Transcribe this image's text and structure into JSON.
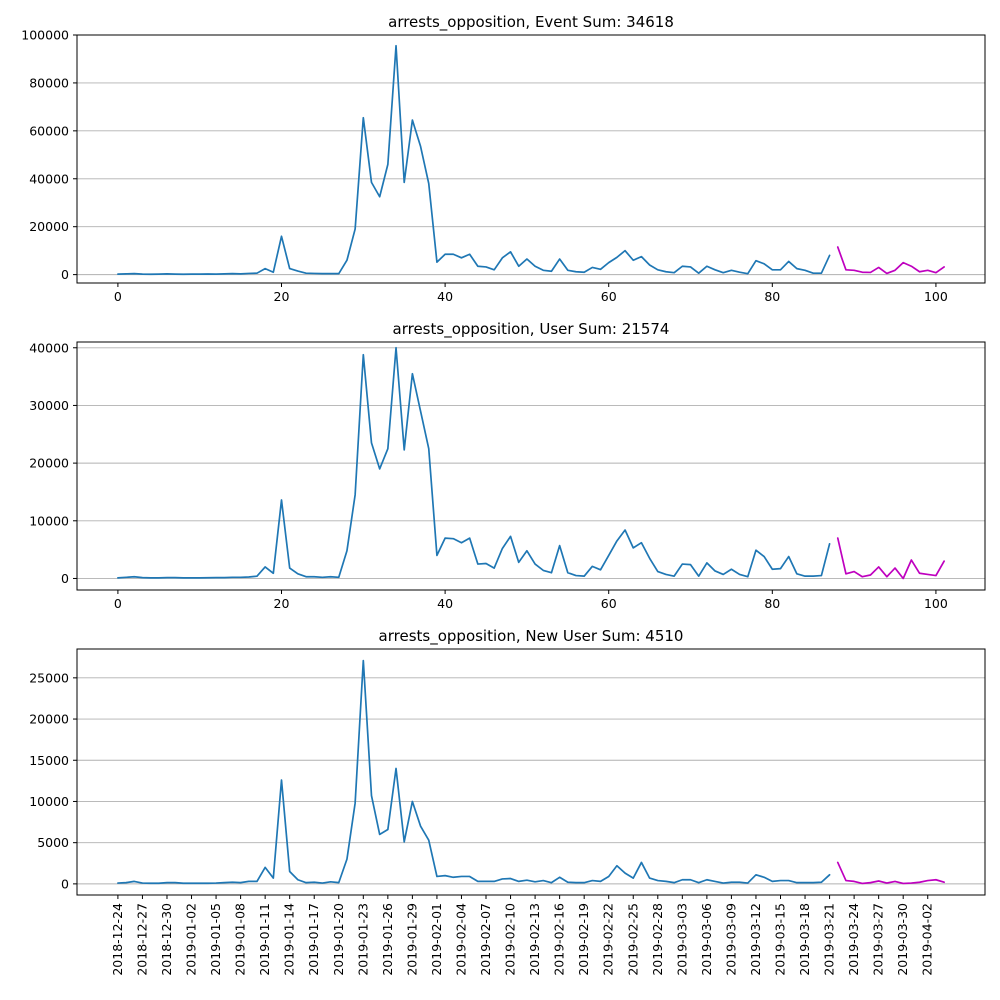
{
  "chart_data": [
    {
      "type": "line",
      "title": "arrests_opposition, Event Sum: 34618",
      "xlabel": "",
      "ylabel": "",
      "xlim": [
        -5,
        106
      ],
      "ylim": [
        -3500,
        100000
      ],
      "yticks": [
        0,
        20000,
        40000,
        60000,
        80000,
        100000
      ],
      "xticks": [
        0,
        20,
        40,
        60,
        80,
        100
      ],
      "grid": "horizontal",
      "series": [
        {
          "color": "#1f77b4",
          "x_start": 0,
          "values": [
            200,
            300,
            400,
            200,
            150,
            200,
            300,
            200,
            150,
            200,
            200,
            250,
            200,
            300,
            400,
            300,
            500,
            600,
            2500,
            1000,
            16000,
            2500,
            1500,
            600,
            500,
            400,
            400,
            400,
            6000,
            19000,
            65500,
            38500,
            32500,
            46000,
            95500,
            38500,
            64500,
            53500,
            38000,
            5200,
            8500,
            8500,
            7000,
            8500,
            3500,
            3200,
            2000,
            7000,
            9500,
            3500,
            6500,
            3500,
            1800,
            1400,
            6500,
            1800,
            1200,
            1000,
            3000,
            2200,
            5000,
            7200,
            10000,
            6000,
            7500,
            4000,
            2000,
            1200,
            800,
            3500,
            3200,
            600,
            3500,
            2000,
            800,
            1800,
            1000,
            400,
            5800,
            4500,
            2000,
            2000,
            5500,
            2500,
            1800,
            600,
            600,
            8000
          ]
        },
        {
          "color": "#bf00bf",
          "x_start": 88,
          "values": [
            11500,
            2000,
            1800,
            1000,
            900,
            3000,
            500,
            1800,
            5000,
            3500,
            1200,
            1800,
            800,
            3200
          ]
        }
      ]
    },
    {
      "type": "line",
      "title": "arrests_opposition, User Sum: 21574",
      "xlabel": "",
      "ylabel": "",
      "xlim": [
        -5,
        106
      ],
      "ylim": [
        -2000,
        41000
      ],
      "yticks": [
        0,
        10000,
        20000,
        30000,
        40000
      ],
      "xticks": [
        0,
        20,
        40,
        60,
        80,
        100
      ],
      "grid": "horizontal",
      "series": [
        {
          "color": "#1f77b4",
          "x_start": 0,
          "values": [
            100,
            200,
            300,
            150,
            100,
            100,
            150,
            150,
            100,
            100,
            100,
            120,
            150,
            150,
            200,
            200,
            250,
            400,
            2000,
            900,
            13600,
            1800,
            800,
            300,
            300,
            200,
            300,
            200,
            4800,
            14500,
            38800,
            23500,
            19000,
            22500,
            40000,
            22300,
            35500,
            29000,
            22500,
            4000,
            7000,
            6900,
            6200,
            7000,
            2500,
            2600,
            1800,
            5200,
            7300,
            2800,
            4800,
            2500,
            1400,
            1000,
            5700,
            1000,
            500,
            400,
            2100,
            1500,
            4000,
            6500,
            8400,
            5300,
            6200,
            3500,
            1200,
            700,
            400,
            2500,
            2400,
            400,
            2700,
            1300,
            700,
            1600,
            700,
            300,
            4900,
            3800,
            1600,
            1700,
            3800,
            800,
            400,
            400,
            500,
            6000
          ]
        },
        {
          "color": "#bf00bf",
          "x_start": 88,
          "values": [
            7000,
            800,
            1200,
            300,
            600,
            2000,
            300,
            1800,
            0,
            3200,
            900,
            700,
            500,
            3000
          ]
        }
      ]
    },
    {
      "type": "line",
      "title": "arrests_opposition, New User Sum: 4510",
      "xlabel": "",
      "ylabel": "",
      "xlim": [
        -5,
        106
      ],
      "ylim": [
        -1350,
        28500
      ],
      "yticks": [
        0,
        5000,
        10000,
        15000,
        20000,
        25000
      ],
      "xtick_step": 3,
      "grid": "horizontal",
      "x_dates": [
        "2018-12-24",
        "2018-12-27",
        "2018-12-30",
        "2019-01-02",
        "2019-01-05",
        "2019-01-08",
        "2019-01-11",
        "2019-01-14",
        "2019-01-17",
        "2019-01-20",
        "2019-01-23",
        "2019-01-26",
        "2019-01-29",
        "2019-02-01",
        "2019-02-04",
        "2019-02-07",
        "2019-02-10",
        "2019-02-13",
        "2019-02-16",
        "2019-02-19",
        "2019-02-22",
        "2019-02-25",
        "2019-02-28",
        "2019-03-03",
        "2019-03-06",
        "2019-03-09",
        "2019-03-12",
        "2019-03-15",
        "2019-03-18",
        "2019-03-21",
        "2019-03-24",
        "2019-03-27",
        "2019-03-30",
        "2019-04-02"
      ],
      "series": [
        {
          "color": "#1f77b4",
          "x_start": 0,
          "values": [
            100,
            150,
            300,
            100,
            80,
            80,
            150,
            150,
            80,
            80,
            80,
            80,
            100,
            150,
            200,
            150,
            300,
            300,
            2000,
            700,
            12600,
            1500,
            500,
            150,
            200,
            100,
            250,
            150,
            3000,
            9800,
            27100,
            10700,
            6000,
            6600,
            14000,
            5100,
            10000,
            7000,
            5300,
            900,
            1000,
            800,
            900,
            900,
            300,
            300,
            300,
            600,
            650,
            300,
            450,
            250,
            400,
            150,
            800,
            200,
            150,
            150,
            400,
            300,
            900,
            2200,
            1300,
            700,
            2600,
            700,
            400,
            300,
            150,
            500,
            500,
            150,
            500,
            300,
            100,
            200,
            200,
            100,
            1100,
            800,
            300,
            400,
            400,
            150,
            150,
            150,
            200,
            1100
          ]
        },
        {
          "color": "#bf00bf",
          "x_start": 88,
          "values": [
            2600,
            400,
            300,
            50,
            150,
            350,
            100,
            300,
            50,
            100,
            200,
            400,
            500,
            200
          ]
        }
      ]
    }
  ]
}
